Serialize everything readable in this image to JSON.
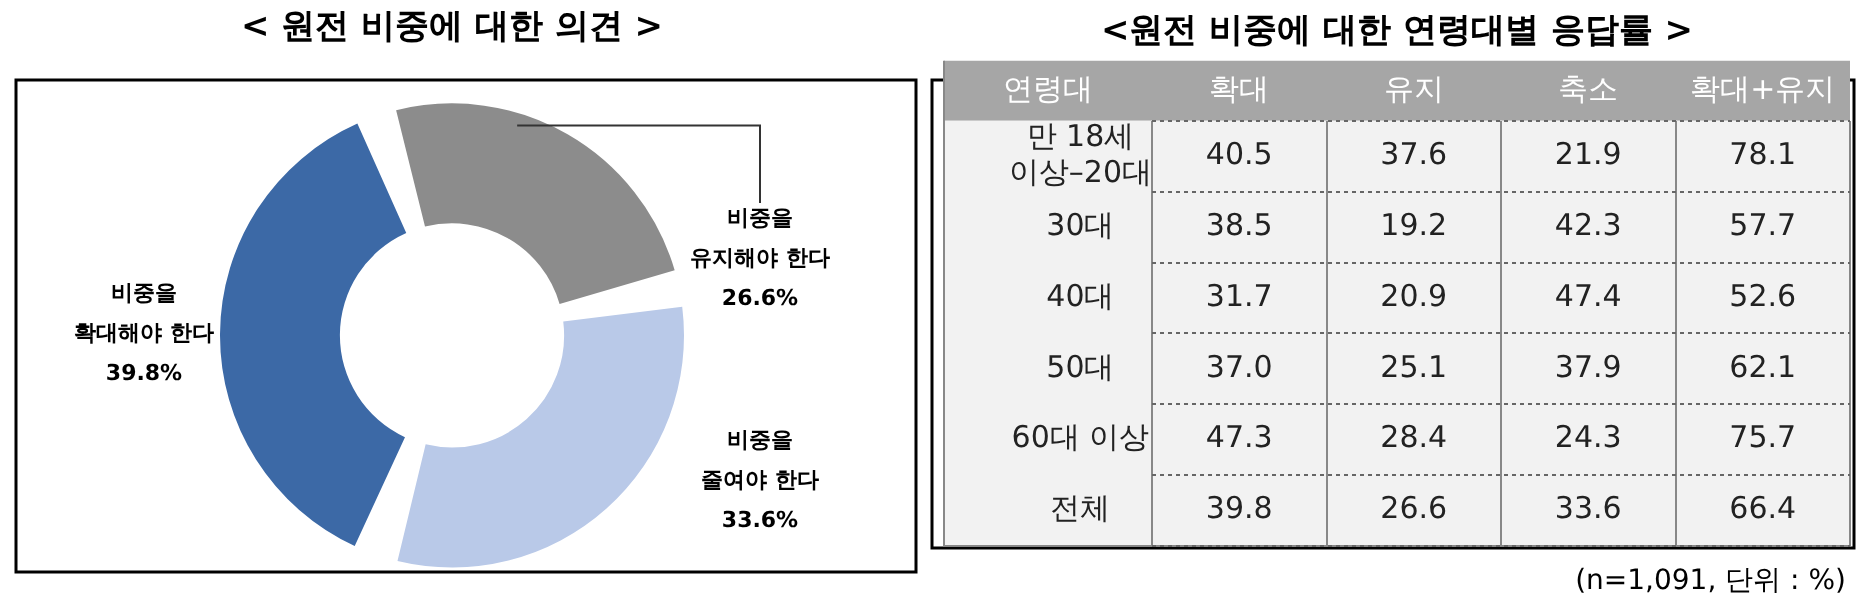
{
  "chart_data": [
    {
      "type": "donut",
      "title": "< 원전 비중에 대한 의견 >",
      "categories": [
        "비중을 유지해야 한다",
        "비중을 줄여야 한다",
        "비중을 확대해야 한다"
      ],
      "values": [
        26.6,
        33.6,
        39.8
      ],
      "value_labels": [
        "26.6%",
        "33.6%",
        "39.8%"
      ],
      "colors": [
        "#8c8c8c",
        "#b9c9e8",
        "#3c69a6"
      ]
    },
    {
      "type": "heatmap",
      "title": "<원전 비중에 대한 연령대별 응답률 >",
      "ylabel": "연령대",
      "categories": [
        "확대",
        "유지",
        "축소",
        "확대+유지"
      ],
      "y_categories": [
        "만 18세 이상–20대",
        "30대",
        "40대",
        "50대",
        "60대 이상",
        "전체"
      ],
      "cells": [
        [
          40.5,
          37.6,
          21.9,
          78.1
        ],
        [
          38.5,
          19.2,
          42.3,
          57.7
        ],
        [
          31.7,
          20.9,
          47.4,
          52.6
        ],
        [
          37.0,
          25.1,
          37.9,
          62.1
        ],
        [
          47.3,
          28.4,
          24.3,
          75.7
        ],
        [
          39.8,
          26.6,
          33.6,
          66.4
        ]
      ],
      "cell_labels": [
        [
          "40.5",
          "37.6",
          "21.9",
          "78.1"
        ],
        [
          "38.5",
          "19.2",
          "42.3",
          "57.7"
        ],
        [
          "31.7",
          "20.9",
          "47.4",
          "52.6"
        ],
        [
          "37.0",
          "25.1",
          "37.9",
          "62.1"
        ],
        [
          "47.3",
          "28.4",
          "24.3",
          "75.7"
        ],
        [
          "39.8",
          "26.6",
          "33.6",
          "66.4"
        ]
      ],
      "data_labels": true,
      "grid": true,
      "annotations": [
        "(n=1,091, 단위 : %)"
      ]
    }
  ]
}
